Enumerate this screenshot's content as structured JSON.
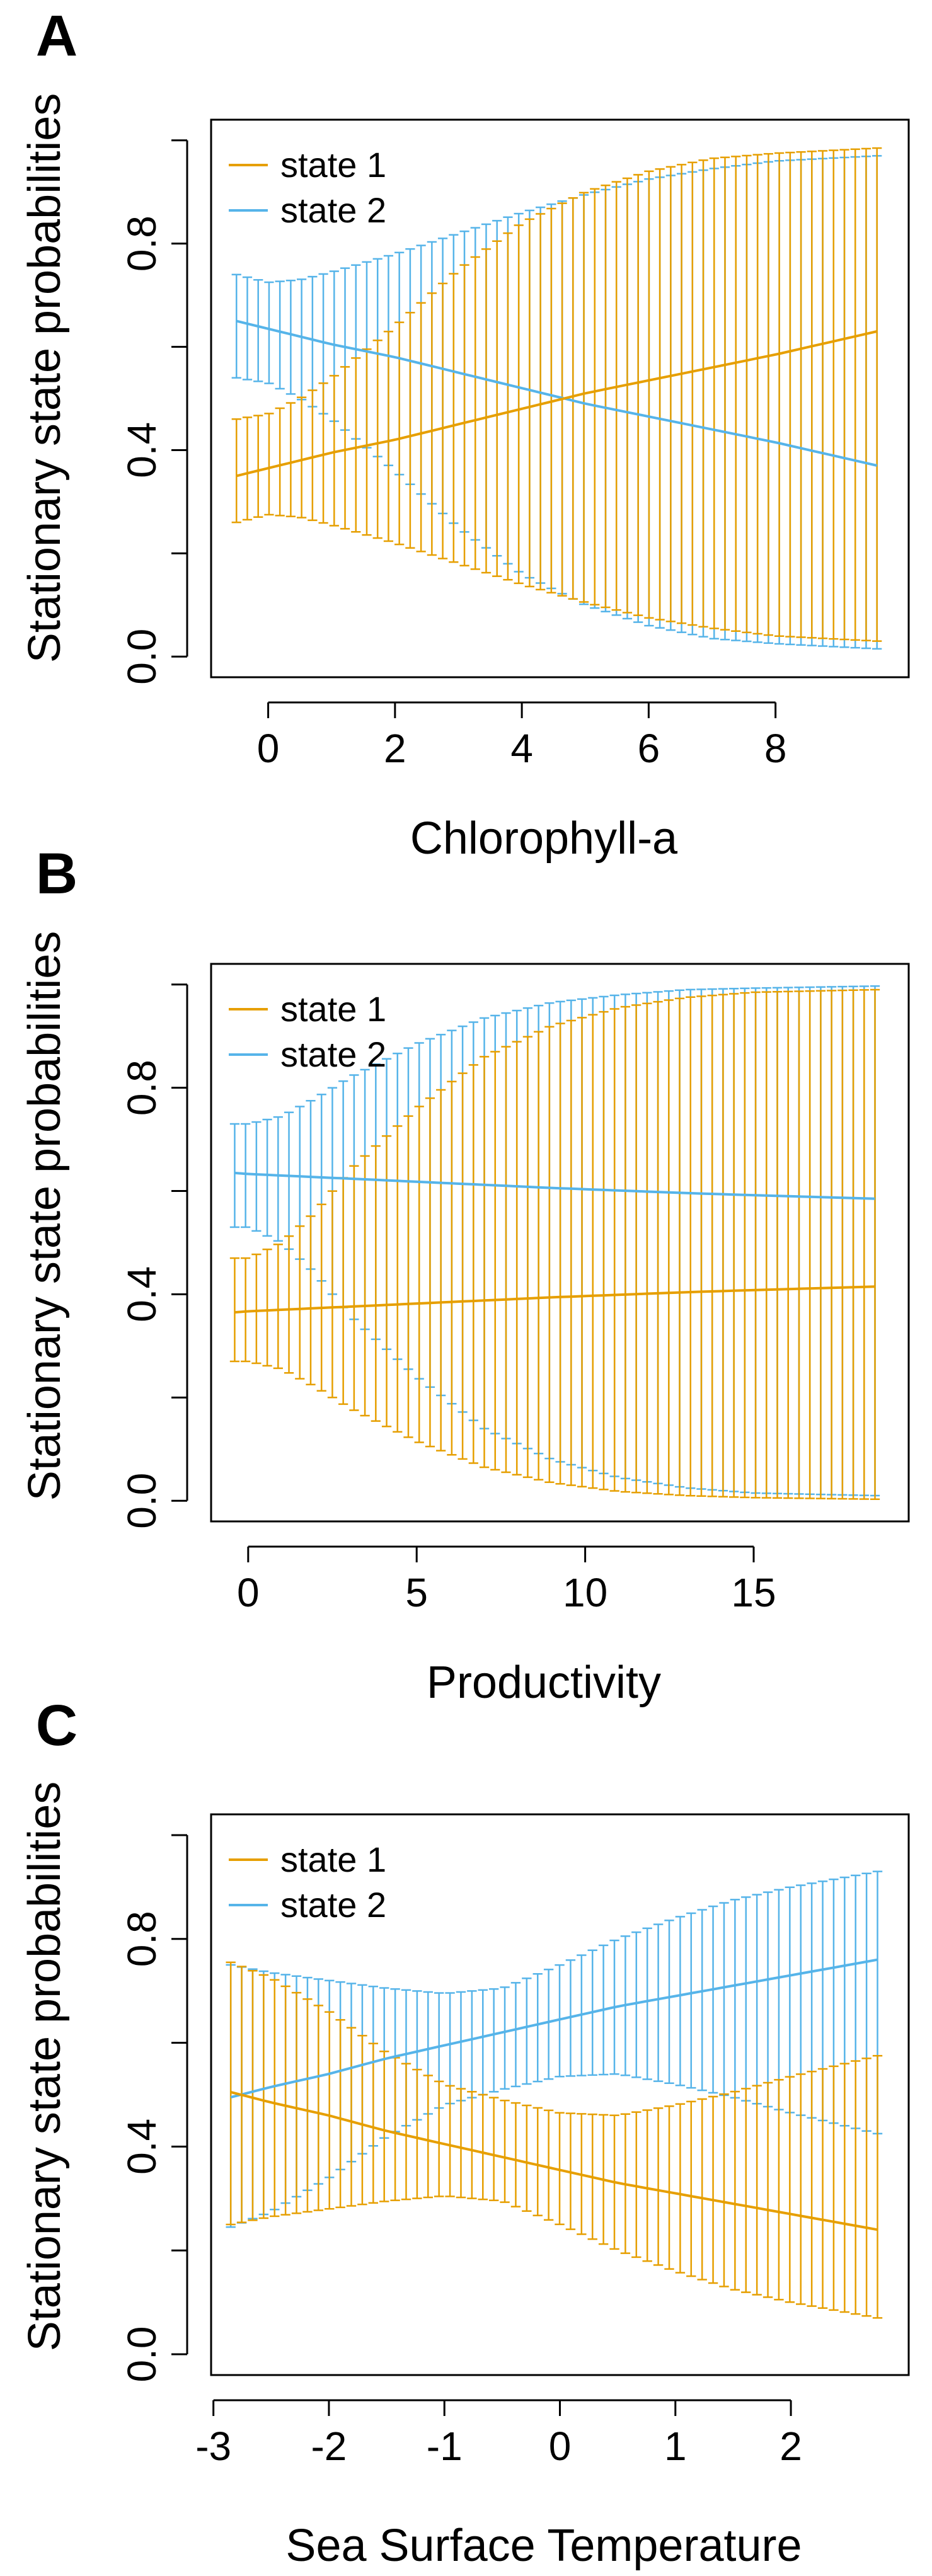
{
  "colors": {
    "state1": "#E69F00",
    "state2": "#56B4E9"
  },
  "chart_data": [
    {
      "type": "line",
      "panel": "A",
      "title": "",
      "xlabel": "Chlorophyll-a",
      "ylabel": "Stationary state probabilities",
      "xlim": [
        -0.9,
        10.1
      ],
      "ylim": [
        -0.04,
        1.04
      ],
      "xticks": [
        0,
        2,
        4,
        6,
        8
      ],
      "xtick_labels": [
        "0",
        "2",
        "4",
        "6",
        "8"
      ],
      "yticks": [
        0.0,
        0.2,
        0.4,
        0.6,
        0.8,
        1.0
      ],
      "ytick_labels": [
        "0.0",
        "",
        "0.4",
        "",
        "0.8",
        ""
      ],
      "legend": [
        "state 1",
        "state 2"
      ],
      "legend_position": "top-left",
      "x_range": [
        -0.5,
        9.6
      ],
      "n_points": 60,
      "series": [
        {
          "name": "state 1",
          "color": "#E69F00",
          "x": [
            -0.5,
            0.0,
            0.5,
            1.0,
            2.0,
            3.0,
            4.0,
            5.0,
            6.0,
            7.0,
            8.0,
            9.6
          ],
          "mean": [
            0.35,
            0.365,
            0.38,
            0.395,
            0.42,
            0.45,
            0.48,
            0.51,
            0.535,
            0.56,
            0.585,
            0.63
          ],
          "lower": [
            0.26,
            0.275,
            0.27,
            0.255,
            0.22,
            0.18,
            0.14,
            0.105,
            0.075,
            0.055,
            0.04,
            0.03
          ],
          "upper": [
            0.46,
            0.47,
            0.5,
            0.54,
            0.64,
            0.75,
            0.84,
            0.9,
            0.94,
            0.965,
            0.975,
            0.985
          ]
        },
        {
          "name": "state 2",
          "color": "#56B4E9",
          "x": [
            -0.5,
            0.0,
            0.5,
            1.0,
            2.0,
            3.0,
            4.0,
            5.0,
            6.0,
            7.0,
            8.0,
            9.6
          ],
          "mean": [
            0.65,
            0.635,
            0.62,
            0.605,
            0.58,
            0.55,
            0.52,
            0.49,
            0.465,
            0.44,
            0.415,
            0.37
          ],
          "lower": [
            0.54,
            0.53,
            0.5,
            0.46,
            0.36,
            0.25,
            0.16,
            0.1,
            0.06,
            0.035,
            0.025,
            0.015
          ],
          "upper": [
            0.74,
            0.725,
            0.73,
            0.745,
            0.78,
            0.82,
            0.86,
            0.895,
            0.925,
            0.945,
            0.96,
            0.97
          ]
        }
      ]
    },
    {
      "type": "line",
      "panel": "B",
      "title": "",
      "xlabel": "Productivity",
      "ylabel": "Stationary state probabilities",
      "xlim": [
        -1.1,
        19.6
      ],
      "ylim": [
        -0.04,
        1.04
      ],
      "xticks": [
        0,
        5,
        10,
        15
      ],
      "xtick_labels": [
        "0",
        "5",
        "10",
        "15"
      ],
      "yticks": [
        0.0,
        0.2,
        0.4,
        0.6,
        0.8,
        1.0
      ],
      "ytick_labels": [
        "0.0",
        "",
        "0.4",
        "",
        "0.8",
        ""
      ],
      "legend": [
        "state 1",
        "state 2"
      ],
      "legend_position": "top-left",
      "x_range": [
        -0.4,
        18.6
      ],
      "n_points": 60,
      "series": [
        {
          "name": "state 1",
          "color": "#E69F00",
          "x": [
            -0.4,
            0.0,
            1.0,
            2.0,
            3.0,
            5.0,
            7.0,
            9.0,
            11.0,
            13.0,
            15.0,
            18.6
          ],
          "mean": [
            0.365,
            0.367,
            0.37,
            0.373,
            0.376,
            0.382,
            0.388,
            0.394,
            0.399,
            0.404,
            0.408,
            0.415
          ],
          "lower": [
            0.27,
            0.27,
            0.255,
            0.22,
            0.18,
            0.115,
            0.065,
            0.035,
            0.018,
            0.01,
            0.006,
            0.003
          ],
          "upper": [
            0.47,
            0.47,
            0.5,
            0.56,
            0.64,
            0.76,
            0.86,
            0.92,
            0.955,
            0.975,
            0.985,
            0.99
          ]
        },
        {
          "name": "state 2",
          "color": "#56B4E9",
          "x": [
            -0.4,
            0.0,
            1.0,
            2.0,
            3.0,
            5.0,
            7.0,
            9.0,
            11.0,
            13.0,
            15.0,
            18.6
          ],
          "mean": [
            0.635,
            0.633,
            0.63,
            0.627,
            0.624,
            0.618,
            0.612,
            0.606,
            0.601,
            0.596,
            0.592,
            0.585
          ],
          "lower": [
            0.53,
            0.53,
            0.5,
            0.44,
            0.36,
            0.24,
            0.14,
            0.08,
            0.045,
            0.025,
            0.015,
            0.01
          ],
          "upper": [
            0.73,
            0.73,
            0.745,
            0.78,
            0.82,
            0.885,
            0.935,
            0.965,
            0.98,
            0.99,
            0.993,
            0.997
          ]
        }
      ]
    },
    {
      "type": "line",
      "panel": "C",
      "title": "",
      "xlabel": "Sea Surface Temperature",
      "ylabel": "Stationary state probabilities",
      "xlim": [
        -3.02,
        3.02
      ],
      "ylim": [
        -0.04,
        1.04
      ],
      "xticks": [
        -3,
        -2,
        -1,
        0,
        1,
        2
      ],
      "xtick_labels": [
        "-3",
        "-2",
        "-1",
        "0",
        "1",
        "2"
      ],
      "yticks": [
        0.0,
        0.2,
        0.4,
        0.6,
        0.8,
        1.0
      ],
      "ytick_labels": [
        "0.0",
        "",
        "0.4",
        "",
        "0.8",
        ""
      ],
      "legend": [
        "state 1",
        "state 2"
      ],
      "legend_position": "top-left",
      "x_range": [
        -2.85,
        2.75
      ],
      "n_points": 60,
      "series": [
        {
          "name": "state 1",
          "color": "#E69F00",
          "x": [
            -2.85,
            -2.5,
            -2.0,
            -1.5,
            -1.0,
            -0.5,
            0.0,
            0.5,
            1.0,
            1.5,
            2.0,
            2.75
          ],
          "mean": [
            0.505,
            0.485,
            0.46,
            0.43,
            0.405,
            0.38,
            0.355,
            0.33,
            0.31,
            0.29,
            0.27,
            0.24
          ],
          "lower": [
            0.25,
            0.265,
            0.28,
            0.295,
            0.305,
            0.295,
            0.25,
            0.2,
            0.16,
            0.125,
            0.1,
            0.07
          ],
          "upper": [
            0.755,
            0.725,
            0.66,
            0.58,
            0.52,
            0.49,
            0.465,
            0.46,
            0.48,
            0.505,
            0.535,
            0.575
          ]
        },
        {
          "name": "state 2",
          "color": "#56B4E9",
          "x": [
            -2.85,
            -2.5,
            -2.0,
            -1.5,
            -1.0,
            -0.5,
            0.0,
            0.5,
            1.0,
            1.5,
            2.0,
            2.75
          ],
          "mean": [
            0.495,
            0.515,
            0.54,
            0.57,
            0.595,
            0.62,
            0.645,
            0.67,
            0.69,
            0.71,
            0.73,
            0.76
          ],
          "lower": [
            0.245,
            0.275,
            0.34,
            0.42,
            0.48,
            0.51,
            0.535,
            0.54,
            0.52,
            0.495,
            0.465,
            0.425
          ],
          "upper": [
            0.75,
            0.735,
            0.72,
            0.705,
            0.695,
            0.705,
            0.75,
            0.8,
            0.84,
            0.875,
            0.9,
            0.93
          ]
        }
      ]
    }
  ]
}
